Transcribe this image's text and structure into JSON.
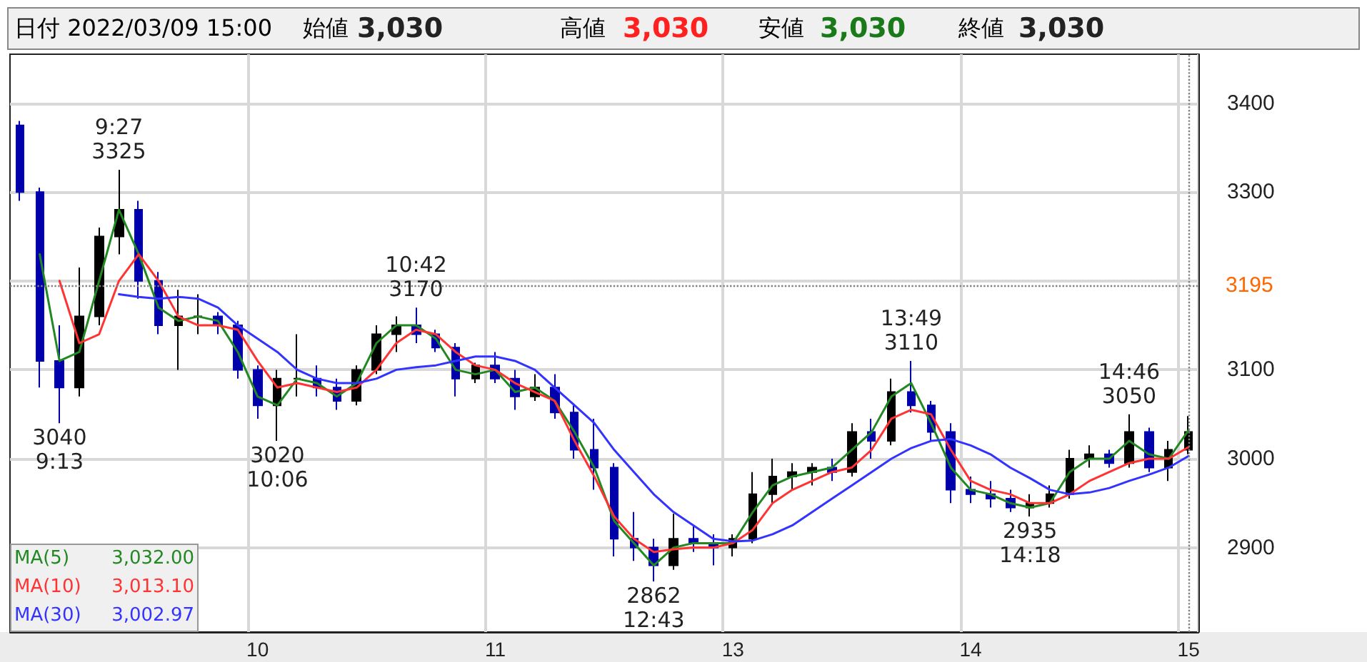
{
  "chart_data": {
    "type": "candlestick",
    "categories": [
      null,
      null,
      null,
      null,
      null,
      null,
      null,
      null,
      null,
      null,
      null,
      null,
      "10",
      null,
      null,
      null,
      null,
      null,
      null,
      null,
      null,
      null,
      null,
      null,
      "11",
      null,
      null,
      null,
      null,
      null,
      null,
      null,
      null,
      null,
      null,
      null,
      "13",
      null,
      null,
      null,
      null,
      null,
      null,
      null,
      null,
      null,
      null,
      null,
      "14",
      null,
      null,
      null,
      null,
      null,
      null,
      null,
      null,
      null,
      null,
      "15"
    ],
    "ohlc": [
      [
        3375,
        3380,
        3290,
        3300
      ],
      [
        3300,
        3305,
        3080,
        3110
      ],
      [
        3110,
        3150,
        3040,
        3080
      ],
      [
        3080,
        3215,
        3070,
        3160
      ],
      [
        3160,
        3260,
        3150,
        3250
      ],
      [
        3250,
        3325,
        3230,
        3280
      ],
      [
        3280,
        3290,
        3180,
        3200
      ],
      [
        3200,
        3210,
        3140,
        3150
      ],
      [
        3150,
        3190,
        3100,
        3160
      ],
      [
        3160,
        3185,
        3140,
        3160
      ],
      [
        3160,
        3165,
        3140,
        3150
      ],
      [
        3150,
        3155,
        3090,
        3100
      ],
      [
        3100,
        3105,
        3045,
        3060
      ],
      [
        3060,
        3100,
        3020,
        3090
      ],
      [
        3090,
        3140,
        3070,
        3090
      ],
      [
        3090,
        3105,
        3070,
        3080
      ],
      [
        3080,
        3090,
        3055,
        3065
      ],
      [
        3065,
        3105,
        3060,
        3100
      ],
      [
        3100,
        3150,
        3095,
        3140
      ],
      [
        3140,
        3160,
        3120,
        3150
      ],
      [
        3150,
        3170,
        3130,
        3140
      ],
      [
        3140,
        3145,
        3120,
        3125
      ],
      [
        3125,
        3130,
        3070,
        3090
      ],
      [
        3090,
        3108,
        3085,
        3105
      ],
      [
        3105,
        3120,
        3085,
        3090
      ],
      [
        3090,
        3100,
        3055,
        3070
      ],
      [
        3070,
        3095,
        3065,
        3080
      ],
      [
        3080,
        3095,
        3045,
        3052
      ],
      [
        3052,
        3060,
        3000,
        3010
      ],
      [
        3010,
        3045,
        2965,
        2990
      ],
      [
        2990,
        2995,
        2890,
        2910
      ],
      [
        2910,
        2940,
        2885,
        2900
      ],
      [
        2900,
        2910,
        2862,
        2880
      ],
      [
        2880,
        2938,
        2875,
        2910
      ],
      [
        2910,
        2925,
        2895,
        2905
      ],
      [
        2905,
        2915,
        2880,
        2900
      ],
      [
        2900,
        2915,
        2890,
        2910
      ],
      [
        2910,
        2985,
        2905,
        2960
      ],
      [
        2960,
        3000,
        2950,
        2980
      ],
      [
        2980,
        2995,
        2965,
        2985
      ],
      [
        2985,
        2995,
        2970,
        2990
      ],
      [
        2990,
        3000,
        2975,
        2985
      ],
      [
        2985,
        3040,
        2980,
        3030
      ],
      [
        3030,
        3045,
        3000,
        3020
      ],
      [
        3020,
        3090,
        3015,
        3075
      ],
      [
        3075,
        3110,
        3052,
        3060
      ],
      [
        3060,
        3065,
        3020,
        3030
      ],
      [
        3030,
        3040,
        2950,
        2965
      ],
      [
        2965,
        2980,
        2950,
        2960
      ],
      [
        2960,
        2975,
        2945,
        2955
      ],
      [
        2955,
        2965,
        2940,
        2945
      ],
      [
        2945,
        2960,
        2935,
        2950
      ],
      [
        2950,
        2970,
        2945,
        2960
      ],
      [
        2960,
        3010,
        2955,
        3000
      ],
      [
        3000,
        3015,
        2990,
        3005
      ],
      [
        3005,
        3010,
        2990,
        2995
      ],
      [
        2995,
        3050,
        2990,
        3030
      ],
      [
        3030,
        3035,
        2985,
        2990
      ],
      [
        2990,
        3020,
        2975,
        3010
      ],
      [
        3010,
        3048,
        3005,
        3030
      ]
    ],
    "series": [
      {
        "name": "MA(5)",
        "type": "line",
        "color": "#228822",
        "values": [
          null,
          3230,
          3110,
          3120,
          3200,
          3280,
          3230,
          3170,
          3155,
          3160,
          3155,
          3120,
          3070,
          3060,
          3090,
          3085,
          3070,
          3085,
          3130,
          3150,
          3150,
          3135,
          3100,
          3095,
          3100,
          3075,
          3080,
          3065,
          3030,
          2990,
          2930,
          2905,
          2880,
          2900,
          2905,
          2905,
          2905,
          2940,
          2970,
          2980,
          2985,
          2990,
          3010,
          3030,
          3070,
          3085,
          3040,
          2990,
          2965,
          2960,
          2950,
          2945,
          2950,
          2985,
          3000,
          3000,
          3020,
          3005,
          3000,
          3032
        ]
      },
      {
        "name": "MA(10)",
        "type": "line",
        "color": "#ff3333",
        "values": [
          null,
          null,
          3200,
          3130,
          3140,
          3200,
          3230,
          3200,
          3160,
          3150,
          3150,
          3145,
          3110,
          3080,
          3085,
          3080,
          3075,
          3080,
          3100,
          3130,
          3145,
          3140,
          3120,
          3105,
          3100,
          3085,
          3075,
          3065,
          3020,
          2980,
          2935,
          2910,
          2895,
          2898,
          2900,
          2900,
          2905,
          2920,
          2950,
          2965,
          2975,
          2985,
          2990,
          3010,
          3045,
          3055,
          3050,
          3010,
          2975,
          2965,
          2960,
          2950,
          2950,
          2960,
          2975,
          2985,
          2995,
          3000,
          3000,
          3013
        ]
      },
      {
        "name": "MA(30)",
        "type": "line",
        "color": "#3333ff",
        "values": [
          null,
          null,
          null,
          null,
          null,
          3185,
          3182,
          3180,
          3182,
          3180,
          3170,
          3150,
          3135,
          3120,
          3100,
          3090,
          3085,
          3085,
          3090,
          3100,
          3103,
          3105,
          3110,
          3115,
          3115,
          3110,
          3100,
          3080,
          3060,
          3040,
          3010,
          2985,
          2960,
          2940,
          2925,
          2910,
          2907,
          2908,
          2915,
          2925,
          2940,
          2955,
          2970,
          2985,
          3000,
          3012,
          3020,
          3022,
          3015,
          3005,
          2990,
          2978,
          2965,
          2960,
          2962,
          2967,
          2975,
          2982,
          2990,
          3003
        ]
      }
    ],
    "ylim": [
      2805,
      3455
    ],
    "yticks": [
      2900,
      3000,
      3100,
      {
        "value": 3200,
        "label": null
      },
      3300,
      3400
    ],
    "grid": true,
    "marker": "none",
    "legend": "bottom left",
    "ref_lines": [
      {
        "axis": "y",
        "value": 3195,
        "label": "3195",
        "color": "#808080",
        "line_style": "dotted"
      },
      {
        "axis": "x",
        "value": "15",
        "color": "#808080",
        "line_style": "dotted"
      }
    ],
    "annotations": [
      "日付 2022/03/09 15:00",
      "始値",
      "3,030",
      "高値",
      "3,030",
      "安値",
      "3,030",
      "終値",
      "3,030",
      "3,032.00",
      "3,013.10",
      "3,002.97",
      {
        "text": "9:27\n3325",
        "y": 3325
      },
      {
        "text": "3040\n9:13",
        "y": 3040
      },
      {
        "text": "3020\n10:06",
        "y": 3020
      },
      {
        "text": "10:42\n3170",
        "y": 3170
      },
      {
        "text": "2862\n12:43",
        "y": 2862
      },
      {
        "text": "13:49\n3110",
        "y": 3110
      },
      {
        "text": "2935\n14:18",
        "y": 2935
      },
      {
        "text": "14:46\n3050",
        "y": 3050
      }
    ]
  }
}
